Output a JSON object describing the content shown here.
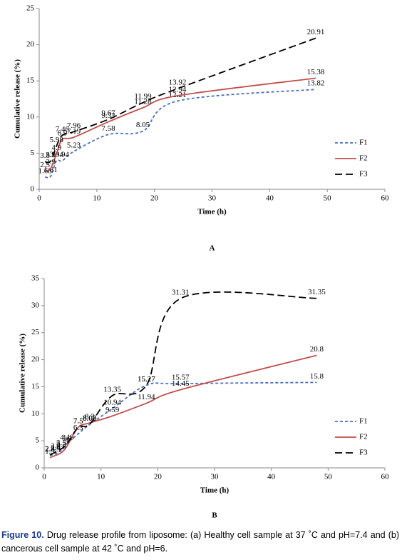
{
  "chart_data": [
    {
      "type": "line",
      "panel_label": "A",
      "y_label": "Cumulative release (%)",
      "x_label": "Time (h)",
      "x": [
        1,
        2,
        3,
        4,
        6,
        12,
        18,
        24,
        48
      ],
      "xlim": [
        0,
        60
      ],
      "xticks": [
        0,
        10,
        20,
        30,
        40,
        50,
        60
      ],
      "ylim": [
        0,
        25
      ],
      "yticks": [
        0,
        5,
        10,
        15,
        20,
        25
      ],
      "legend": "right",
      "smooth": true,
      "series": [
        {
          "name": "F1",
          "color": "#4a6fc1",
          "line_style": "dashed",
          "values": [
            1.68,
            1.81,
            3.94,
            3.94,
            5.23,
            7.58,
            8.05,
            12.21,
            13.82
          ]
        },
        {
          "name": "F2",
          "color": "#c0504d",
          "line_style": "solid",
          "values": [
            2.5,
            2.9,
            4.9,
            6.9,
            7.19,
            9.33,
            11.28,
            12.94,
            15.38
          ]
        },
        {
          "name": "F3",
          "color": "#000000",
          "line_style": "longdash",
          "values": [
            3.8,
            3.9,
            5.98,
            7.46,
            7.96,
            9.67,
            11.99,
            13.92,
            20.91
          ]
        }
      ]
    },
    {
      "type": "line",
      "panel_label": "B",
      "y_label": "Cumulative release (%)",
      "x_label": "Time (h)",
      "x": [
        1,
        2,
        3,
        4,
        6,
        8,
        12,
        18,
        24,
        48
      ],
      "xlim": [
        0,
        60
      ],
      "xticks": [
        0,
        10,
        20,
        30,
        40,
        50,
        60
      ],
      "ylim": [
        0,
        35
      ],
      "yticks": [
        0,
        5,
        10,
        15,
        20,
        25,
        30,
        35
      ],
      "legend": "right",
      "smooth": true,
      "series": [
        {
          "name": "F1",
          "color": "#4a6fc1",
          "line_style": "dashed",
          "values": [
            2.3,
            2.6,
            3.2,
            4.48,
            6.3,
            8.02,
            10.94,
            15.27,
            15.57,
            15.8
          ]
        },
        {
          "name": "F2",
          "color": "#c0504d",
          "line_style": "solid",
          "values": [
            1.9,
            2.3,
            2.8,
            4.0,
            7.5,
            8.3,
            9.59,
            11.94,
            14.45,
            20.8
          ]
        },
        {
          "name": "F3",
          "color": "#000000",
          "line_style": "longdash",
          "values": [
            2.4,
            2.9,
            3.5,
            4.4,
            7.5,
            8.08,
            13.35,
            15.27,
            31.31,
            31.35
          ]
        }
      ]
    }
  ],
  "caption": {
    "label": "Figure 10.",
    "text": "Drug release profile from liposome: (a) Healthy cell sample at 37 ˚C and pH=7.4 and (b) cancerous cell sample at 42 ˚C and pH=6."
  }
}
